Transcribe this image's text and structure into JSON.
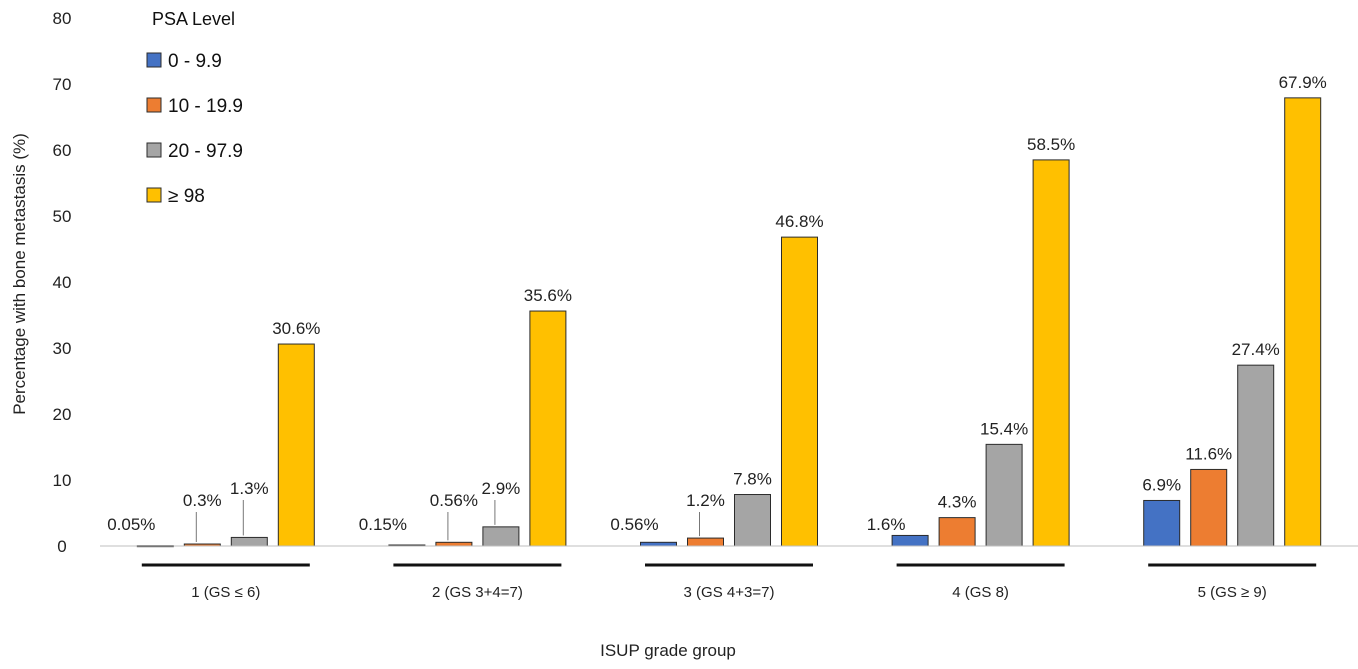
{
  "chart_data": {
    "type": "bar",
    "ylabel": "Percentage with bone metastasis (%)",
    "xlabel": "ISUP grade group",
    "ylim": [
      0,
      80
    ],
    "yticks": [
      0,
      10,
      20,
      30,
      40,
      50,
      60,
      70,
      80
    ],
    "grid": false,
    "legend": {
      "title": "PSA Level",
      "placement": "top-left"
    },
    "categories": [
      "1 (GS ≤ 6)",
      "2 (GS 3+4=7)",
      "3 (GS 4+3=7)",
      "4 (GS 8)",
      "5 (GS ≥ 9)"
    ],
    "series": [
      {
        "name": "0 - 9.9",
        "color": "#4472C4",
        "values": [
          0.05,
          0.15,
          0.56,
          1.6,
          6.9
        ],
        "labels": [
          "0.05%",
          "0.15%",
          "0.56%",
          "1.6%",
          "6.9%"
        ]
      },
      {
        "name": "10 - 19.9",
        "color": "#ED7D31",
        "values": [
          0.3,
          0.56,
          1.2,
          4.3,
          11.6
        ],
        "labels": [
          "0.3%",
          "0.56%",
          "1.2%",
          "4.3%",
          "11.6%"
        ]
      },
      {
        "name": "20 - 97.9",
        "color": "#A5A5A5",
        "values": [
          1.3,
          2.9,
          7.8,
          15.4,
          27.4
        ],
        "labels": [
          "1.3%",
          "2.9%",
          "7.8%",
          "15.4%",
          "27.4%"
        ]
      },
      {
        "name": "≥  98",
        "color": "#FFC000",
        "values": [
          30.6,
          35.6,
          46.8,
          58.5,
          67.9
        ],
        "labels": [
          "30.6%",
          "35.6%",
          "46.8%",
          "58.5%",
          "67.9%"
        ]
      }
    ]
  }
}
